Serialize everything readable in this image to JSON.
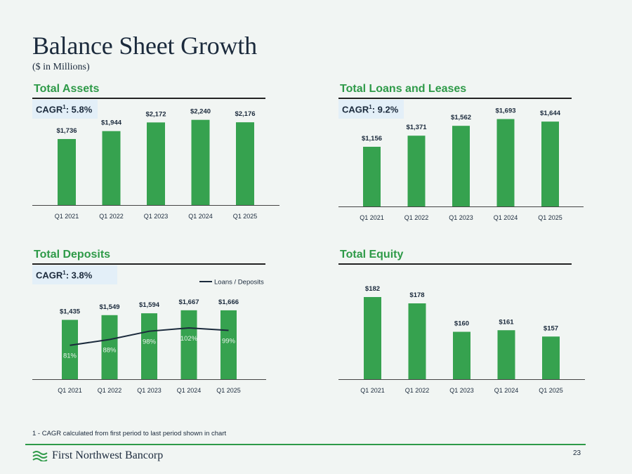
{
  "page": {
    "title": "Balance Sheet Growth",
    "subtitle": "($ in Millions)",
    "footnote": "1 - CAGR calculated from first period to last period shown in chart",
    "company": "First Northwest Bancorp",
    "page_number": "23"
  },
  "colors": {
    "bar": "#36a24f",
    "title_green": "#2e9a48",
    "line": "#1b2a3c"
  },
  "chart_data": [
    {
      "type": "bar",
      "title": "Total Assets",
      "cagr": {
        "label": "CAGR",
        "marker": "1",
        "value": ": 5.8%"
      },
      "categories": [
        "Q1 2021",
        "Q1 2022",
        "Q1 2023",
        "Q1 2024",
        "Q1 2025"
      ],
      "values": [
        1736,
        1944,
        2172,
        2240,
        2176
      ],
      "data_labels": [
        "$1,736",
        "$1,944",
        "$2,172",
        "$2,240",
        "$2,176"
      ],
      "ylim": [
        0,
        2400
      ]
    },
    {
      "type": "bar",
      "title": "Total Loans and Leases",
      "cagr": {
        "label": "CAGR",
        "marker": "1",
        "value": ": 9.2%"
      },
      "categories": [
        "Q1 2021",
        "Q1 2022",
        "Q1 2023",
        "Q1 2024",
        "Q1 2025"
      ],
      "values": [
        1156,
        1371,
        1562,
        1693,
        1644
      ],
      "data_labels": [
        "$1,156",
        "$1,371",
        "$1,562",
        "$1,693",
        "$1,644"
      ],
      "ylim": [
        0,
        1850
      ]
    },
    {
      "type": "bar",
      "title": "Total Deposits",
      "cagr": {
        "label": "CAGR",
        "marker": "1",
        "value": ": 3.8%"
      },
      "categories": [
        "Q1 2021",
        "Q1 2022",
        "Q1 2023",
        "Q1 2024",
        "Q1 2025"
      ],
      "values": [
        1435,
        1549,
        1594,
        1667,
        1666
      ],
      "data_labels": [
        "$1,435",
        "$1,549",
        "$1,594",
        "$1,667",
        "$1,666"
      ],
      "ylim": [
        0,
        1800
      ],
      "line_series": {
        "name": "Loans / Deposits",
        "values": [
          81,
          88,
          98,
          102,
          99
        ],
        "labels": [
          "81%",
          "88%",
          "98%",
          "102%",
          "99%"
        ],
        "ylim": [
          40,
          130
        ]
      }
    },
    {
      "type": "bar",
      "title": "Total Equity",
      "categories": [
        "Q1 2021",
        "Q1 2022",
        "Q1 2023",
        "Q1 2024",
        "Q1 2025"
      ],
      "values": [
        182,
        178,
        160,
        161,
        157
      ],
      "data_labels": [
        "$182",
        "$178",
        "$160",
        "$161",
        "$157"
      ],
      "ylim": [
        130,
        186
      ]
    }
  ]
}
